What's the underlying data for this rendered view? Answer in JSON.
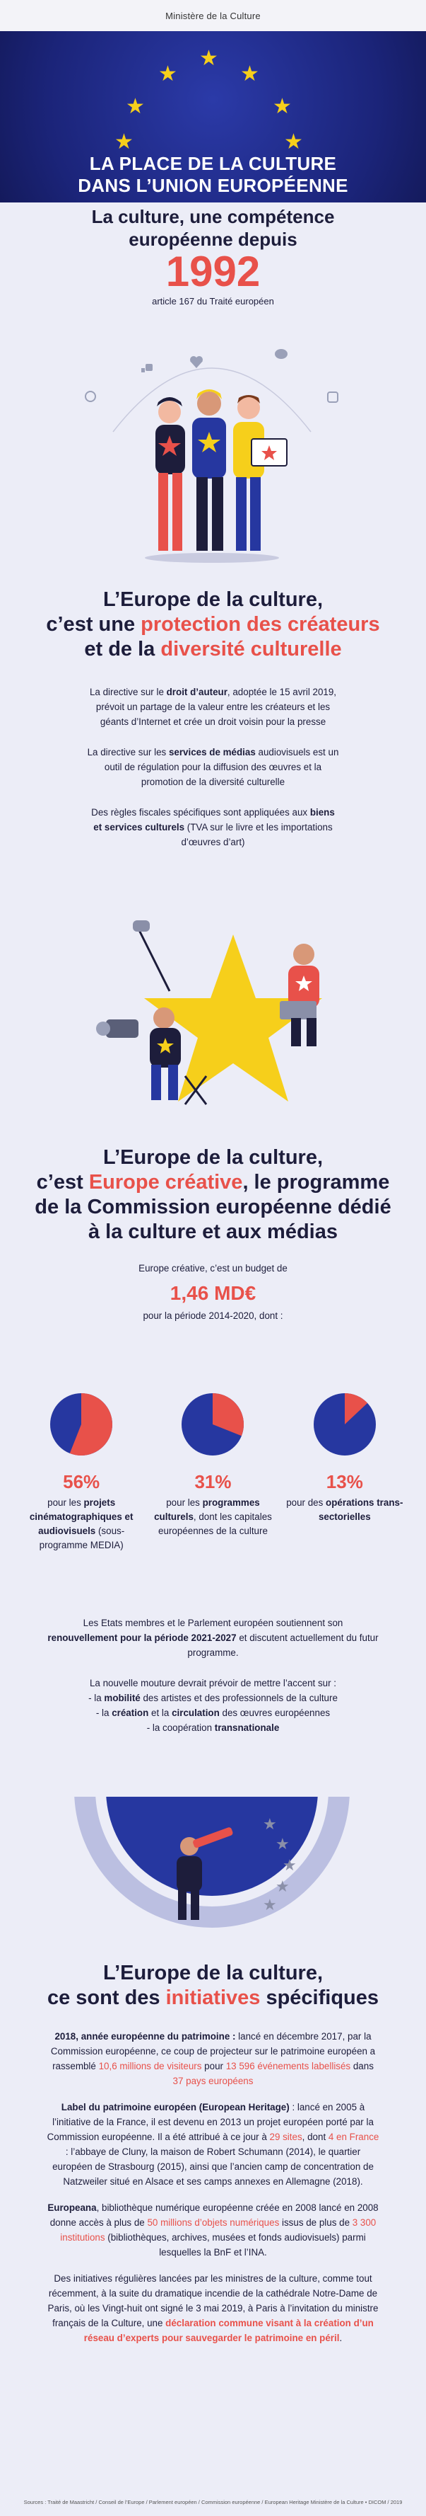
{
  "header": {
    "ministry": "Ministère de la Culture"
  },
  "hero": {
    "title_line1": "LA PLACE DE LA CULTURE",
    "title_line2": "DANS L’UNION EUROPÉENNE"
  },
  "intro": {
    "title_line1": "La culture, une compétence",
    "title_line2": "européenne depuis",
    "year": "1992",
    "article": "article 167 du Traité européen"
  },
  "section1": {
    "title_line1": "L’Europe de la culture,",
    "title_pre2": "c’est une ",
    "title_hl2": "protection des créateurs",
    "title_pre3": "et de la ",
    "title_hl3": "diversité culturelle",
    "p1": {
      "pre": "La directive sur le ",
      "bold": "droit d’auteur",
      "rest": ", adoptée le 15 avril 2019, prévoit un partage de la valeur entre les créateurs et les géants d’Internet et crée un droit voisin pour la presse"
    },
    "p2": {
      "pre": "La directive sur les ",
      "bold": "services de médias",
      "rest": " audiovisuels est un outil de régulation pour la diffusion des œuvres et la promotion de la diversité culturelle"
    },
    "p3": {
      "pre": "Des règles fiscales spécifiques sont appliquées aux ",
      "bold": "biens et services culturels",
      "rest": " (TVA sur le livre et les importations d’œuvres d’art)"
    }
  },
  "section2": {
    "title_line1": "L’Europe de la culture,",
    "title_pre2": "c’est ",
    "title_hl2": "Europe créative",
    "title_post2": ", le programme",
    "title_line3": "de la Commission européenne dédié",
    "title_line4": "à la culture et aux médias",
    "budget_intro": "Europe créative, c’est un budget de",
    "budget_amount": "1,46 MD€",
    "budget_period": "pour la période 2014-2020, dont :",
    "p1": {
      "pre": "Les Etats membres et le Parlement européen soutiennent son ",
      "bold": "renouvellement pour la période 2021-2027",
      "rest": " et discutent actuellement du futur programme."
    },
    "p2_intro": "La nouvelle mouture devrait prévoir de mettre l’accent sur :",
    "bullet1": {
      "pre": "- la ",
      "bold": "mobilité",
      "rest": " des artistes et des professionnels de la culture"
    },
    "bullet2": {
      "pre": "- la ",
      "bold1": "création",
      "mid": " et la ",
      "bold2": "circulation",
      "rest": " des œuvres européennes"
    },
    "bullet3": {
      "pre": "- la coopération ",
      "bold": "transnationale"
    }
  },
  "chart_data": {
    "type": "pie",
    "charts": [
      {
        "pct": "56%",
        "value": 56,
        "label_pre": "pour les ",
        "label_bold": "projets cinématographiques et audiovisuels",
        "label_post": " (sous-programme MEDIA)"
      },
      {
        "pct": "31%",
        "value": 31,
        "label_pre": "pour les ",
        "label_bold": "programmes culturels",
        "label_post": ", dont les capitales européennes de la culture"
      },
      {
        "pct": "13%",
        "value": 13,
        "label_pre": "pour des ",
        "label_bold": "opérations trans-sectorielles",
        "label_post": ""
      }
    ],
    "colors": {
      "slice": "#e8514a",
      "rest": "#2637a0"
    }
  },
  "section3": {
    "title_line1": "L’Europe de la culture,",
    "title_pre2": "ce sont des ",
    "title_hl2": "initiatives",
    "title_post2": " spécifiques",
    "p1": {
      "bold": "2018, année européenne du patrimoine :",
      "t1": " lancé en décembre 2017, par la Commission européenne, ce coup de projecteur sur le patrimoine européen a rassemblé ",
      "hl1": "10,6 millions de visiteurs",
      "t2": " pour ",
      "hl2": "13 596 événements labellisés",
      "t3": " dans ",
      "hl3": "37 pays européens"
    },
    "p2": {
      "bold": "Label du patrimoine européen (European Heritage)",
      "t1": " : lancé en 2005 à l’initiative de la France, il est devenu en 2013 un projet européen porté par la Commission européenne. Il a été attribué à ce jour à ",
      "hl1": "29 sites",
      "t2": ", dont ",
      "hl2": "4 en France",
      "t3": " : l’abbaye de Cluny, la maison de Robert Schumann (2014), le quartier européen de Strasbourg (2015), ainsi que l’ancien camp de concentration de Natzweiler situé en Alsace et ses camps annexes en Allemagne (2018)."
    },
    "p3": {
      "bold": "Europeana",
      "t1": ", bibliothèque numérique européenne créée en 2008 lancé en 2008 donne accès à plus de ",
      "hl1": "50 millions d’objets numériques",
      "t2": " issus de plus de ",
      "hl2": "3 300 institutions",
      "t3": " (bibliothèques, archives, musées et fonds audiovisuels) parmi lesquelles la BnF et l’INA."
    },
    "p4": {
      "t1": "Des initiatives régulières lancées par les ministres de la culture, comme tout récemment, à la suite du dramatique incendie de la cathédrale Notre-Dame de Paris, où les Vingt-huit ont signé le 3 mai 2019, à Paris à l’invitation du ministre français de la Culture, une ",
      "hl1": "déclaration commune visant à la création d’un réseau d’experts pour sauvegarder le patrimoine en péril",
      "t2": "."
    }
  },
  "footer": {
    "sources": "Sources : Traité de Maastricht / Conseil de l’Europe / Parlement européen / Commission européenne / European Heritage Ministère de la Culture • DICOM / 2019"
  }
}
